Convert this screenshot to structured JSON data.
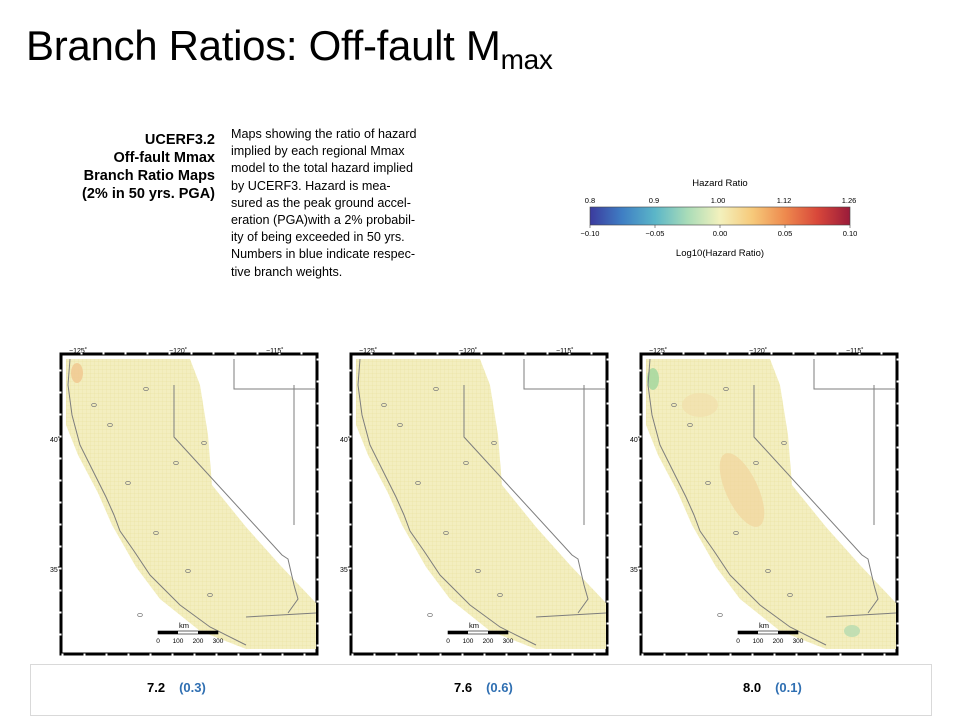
{
  "slide": {
    "title": "Branch Ratios: Off-fault M",
    "title_sub": "max",
    "model_label": [
      "UCERF3.2",
      "Off-fault Mmax",
      "Branch Ratio Maps",
      "(2% in 50 yrs. PGA)"
    ],
    "description": [
      "Maps showing the ratio of hazard",
      "implied by each regional Mmax",
      "model to the total hazard implied",
      "by UCERF3. Hazard is mea-",
      "sured as the peak ground accel-",
      "eration (PGA)with a 2% probabil-",
      "ity of being exceeded in 50 yrs.",
      "Numbers in blue indicate respec-",
      "tive branch weights."
    ]
  },
  "colorbar": {
    "title": "Hazard Ratio",
    "bottom_label": "Log10(Hazard Ratio)",
    "top_ticks": [
      "0.8",
      "0.9",
      "1.00",
      "1.12",
      "1.26"
    ],
    "bottom_ticks": [
      "−0.10",
      "−0.05",
      "0.00",
      "0.05",
      "0.10"
    ],
    "stops": [
      "#3b3b9e",
      "#3f7fc4",
      "#5bb6c8",
      "#a9dcb8",
      "#f3f1bd",
      "#f6c97a",
      "#ee8a4e",
      "#d8473a",
      "#9a1b3a"
    ],
    "range": [
      -0.1,
      0.1
    ]
  },
  "map_labels": {
    "lon_ticks": [
      "−125˚",
      "−120˚",
      "−115˚"
    ],
    "lat_ticks": [
      "40˚",
      "35˚"
    ],
    "scalebar_unit": "km",
    "scalebar_ticks": [
      "0",
      "100",
      "200",
      "300"
    ]
  },
  "colors": {
    "land_fill": "#f3eebf",
    "land_grid": "#e8e09a",
    "line": "#7d7d7d",
    "weight_blue": "#2f6fb2"
  },
  "maps": [
    {
      "mmax": "7.2",
      "weight": "(0.3)"
    },
    {
      "mmax": "7.6",
      "weight": "(0.6)"
    },
    {
      "mmax": "8.0",
      "weight": "(0.1)"
    }
  ]
}
